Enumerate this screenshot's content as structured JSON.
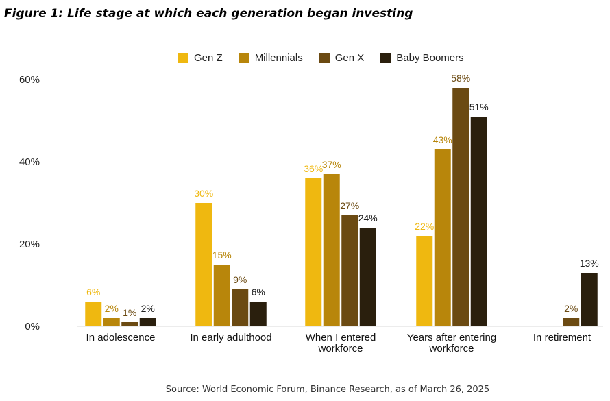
{
  "figure": {
    "title": "Figure 1: Life stage at which each generation began investing",
    "source": "Source: World Economic Forum, Binance Research, as of March 26, 2025"
  },
  "chart_data": {
    "type": "bar",
    "title": "Figure 1: Life stage at which each generation began investing",
    "categories": [
      [
        "In adolescence"
      ],
      [
        "In early adulthood"
      ],
      [
        "When I entered",
        "workforce"
      ],
      [
        "Years after entering",
        "workforce"
      ],
      [
        "In retirement"
      ]
    ],
    "series": [
      {
        "name": "Gen Z",
        "color": "#EFB810",
        "values": [
          6,
          30,
          36,
          22,
          null
        ]
      },
      {
        "name": "Millennials",
        "color": "#B8860B",
        "values": [
          2,
          15,
          37,
          43,
          null
        ]
      },
      {
        "name": "Gen X",
        "color": "#6B4A12",
        "values": [
          1,
          9,
          27,
          58,
          2
        ]
      },
      {
        "name": "Baby Boomers",
        "color": "#2A1F0D",
        "values": [
          2,
          6,
          24,
          51,
          13
        ]
      }
    ],
    "label_colors": [
      "#EFB810",
      "#B8860B",
      "#6B4A12",
      "#222222"
    ],
    "yticks": [
      "0%",
      "20%",
      "40%",
      "60%"
    ],
    "ylim": [
      0,
      60
    ],
    "value_suffix": "%",
    "legend_position": "top",
    "grid": false
  }
}
